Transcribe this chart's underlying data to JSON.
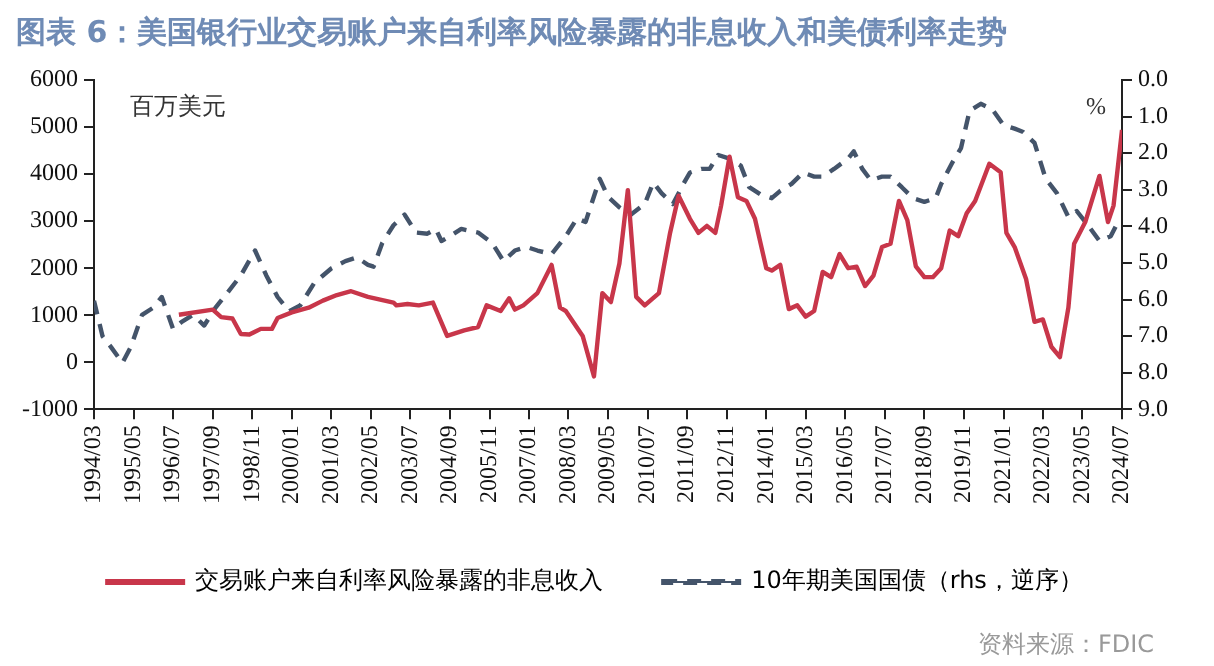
{
  "chart_data": {
    "type": "line",
    "title": "图表 6：美国银行业交易账户来自利率风险暴露的非息收入和美债利率走势",
    "ylabel": "百万美元",
    "y2label": "%",
    "annotations": [
      "资料来源：FDIC"
    ],
    "xlim": [
      "1994-03",
      "2024-07"
    ],
    "xticks": [
      {
        "value": "1994-03",
        "label": "1994/03"
      },
      {
        "value": "1995-05",
        "label": "1995/05"
      },
      {
        "value": "1996-07",
        "label": "1996/07"
      },
      {
        "value": "1997-09",
        "label": "1997/09"
      },
      {
        "value": "1998-11",
        "label": "1998/11"
      },
      {
        "value": "2000-01",
        "label": "2000/01"
      },
      {
        "value": "2001-03",
        "label": "2001/03"
      },
      {
        "value": "2002-05",
        "label": "2002/05"
      },
      {
        "value": "2003-07",
        "label": "2003/07"
      },
      {
        "value": "2004-09",
        "label": "2004/09"
      },
      {
        "value": "2005-11",
        "label": "2005/11"
      },
      {
        "value": "2007-01",
        "label": "2007/01"
      },
      {
        "value": "2008-03",
        "label": "2008/03"
      },
      {
        "value": "2009-05",
        "label": "2009/05"
      },
      {
        "value": "2010-07",
        "label": "2010/07"
      },
      {
        "value": "2011-09",
        "label": "2011/09"
      },
      {
        "value": "2012-11",
        "label": "2012/11"
      },
      {
        "value": "2014-01",
        "label": "2014/01"
      },
      {
        "value": "2015-03",
        "label": "2015/03"
      },
      {
        "value": "2016-05",
        "label": "2016/05"
      },
      {
        "value": "2017-07",
        "label": "2017/07"
      },
      {
        "value": "2018-09",
        "label": "2018/09"
      },
      {
        "value": "2019-11",
        "label": "2019/11"
      },
      {
        "value": "2021-01",
        "label": "2021/01"
      },
      {
        "value": "2022-03",
        "label": "2022/03"
      },
      {
        "value": "2023-05",
        "label": "2023/05"
      },
      {
        "value": "2024-07",
        "label": "2024/07"
      }
    ],
    "ylim": [
      -1000,
      6000
    ],
    "yticks": [
      -1000,
      0,
      1000,
      2000,
      3000,
      4000,
      5000,
      6000
    ],
    "y2lim": [
      9,
      0
    ],
    "y2ticks": [
      {
        "value": 0,
        "label": "0.0"
      },
      {
        "value": 1,
        "label": "1.0"
      },
      {
        "value": 2,
        "label": "2.0"
      },
      {
        "value": 3,
        "label": "3.0"
      },
      {
        "value": 4,
        "label": "4.0"
      },
      {
        "value": 5,
        "label": "5.0"
      },
      {
        "value": 6,
        "label": "6.0"
      },
      {
        "value": 7,
        "label": "7.0"
      },
      {
        "value": 8,
        "label": "8.0"
      },
      {
        "value": 9,
        "label": "9.0"
      }
    ],
    "grid": false,
    "legend": "bottom",
    "marker": "none",
    "series": [
      {
        "name": "交易账户来自利率风险暴露的非息收入",
        "color": "#c8364a",
        "line_style": "solid",
        "x": [
          "1996-09",
          "1997-09",
          "1997-12",
          "1998-04",
          "1998-07",
          "1998-10",
          "1999-02",
          "1999-06",
          "1999-08",
          "2000-01",
          "2000-07",
          "2000-12",
          "2001-05",
          "2001-10",
          "2002-04",
          "2003-01",
          "2003-02",
          "2003-06",
          "2003-10",
          "2004-03",
          "2004-08",
          "2005-02",
          "2005-07",
          "2005-10",
          "2006-03",
          "2006-06",
          "2006-08",
          "2006-11",
          "2007-04",
          "2007-09",
          "2007-12",
          "2008-02",
          "2008-08",
          "2008-12",
          "2009-03",
          "2009-06",
          "2009-09",
          "2009-12",
          "2010-03",
          "2010-06",
          "2010-11",
          "2011-03",
          "2011-06",
          "2011-10",
          "2012-01",
          "2012-04",
          "2012-07",
          "2012-09",
          "2012-12",
          "2013-03",
          "2013-06",
          "2013-09",
          "2014-01",
          "2014-03",
          "2014-06",
          "2014-09",
          "2014-12",
          "2015-03",
          "2015-06",
          "2015-09",
          "2015-12",
          "2016-03",
          "2016-06",
          "2016-09",
          "2016-12",
          "2017-03",
          "2017-06",
          "2017-09",
          "2017-12",
          "2018-03",
          "2018-06",
          "2018-09",
          "2018-12",
          "2019-03",
          "2019-06",
          "2019-09",
          "2019-12",
          "2020-03",
          "2020-08",
          "2020-12",
          "2021-02",
          "2021-05",
          "2021-09",
          "2021-12",
          "2022-03",
          "2022-06",
          "2022-09",
          "2022-12",
          "2023-02",
          "2023-06",
          "2023-11",
          "2024-02",
          "2024-04",
          "2024-07"
        ],
        "values": [
          1010,
          1120,
          960,
          930,
          600,
          590,
          710,
          710,
          940,
          1060,
          1160,
          1310,
          1430,
          1510,
          1390,
          1270,
          1210,
          1240,
          1210,
          1270,
          560,
          680,
          750,
          1210,
          1090,
          1360,
          1120,
          1210,
          1470,
          2070,
          1160,
          1090,
          560,
          -300,
          1470,
          1280,
          2100,
          3660,
          1390,
          1210,
          1470,
          2750,
          3540,
          3050,
          2750,
          2900,
          2750,
          3330,
          4370,
          3510,
          3430,
          3050,
          2000,
          1950,
          2070,
          1130,
          1210,
          970,
          1090,
          1920,
          1810,
          2300,
          2000,
          2030,
          1620,
          1840,
          2450,
          2520,
          3430,
          3020,
          2040,
          1810,
          1810,
          2000,
          2800,
          2680,
          3170,
          3430,
          4220,
          4040,
          2750,
          2450,
          1770,
          860,
          910,
          330,
          110,
          1160,
          2520,
          2980,
          3960,
          2980,
          3330,
          4940
        ]
      },
      {
        "name": "10年期美国国债（rhs，逆序）",
        "color": "#44546a",
        "line_style": "dashed",
        "axis": "y2",
        "x": [
          "1994-03",
          "1994-06",
          "1994-09",
          "1995-01",
          "1995-04",
          "1995-08",
          "1995-12",
          "1996-03",
          "1996-07",
          "1996-10",
          "1997-02",
          "1997-06",
          "1997-10",
          "1998-02",
          "1998-07",
          "1998-12",
          "1999-04",
          "1999-08",
          "1999-12",
          "2000-04",
          "2000-09",
          "2001-03",
          "2001-08",
          "2001-12",
          "2002-04",
          "2002-06",
          "2002-09",
          "2003-01",
          "2003-05",
          "2003-09",
          "2004-01",
          "2004-04",
          "2004-06",
          "2004-09",
          "2005-01",
          "2005-07",
          "2005-12",
          "2006-04",
          "2006-08",
          "2006-12",
          "2007-04",
          "2007-09",
          "2008-02",
          "2008-06",
          "2008-09",
          "2009-02",
          "2009-05",
          "2009-09",
          "2010-01",
          "2010-06",
          "2010-09",
          "2010-12",
          "2011-04",
          "2011-08",
          "2011-10",
          "2012-02",
          "2012-05",
          "2012-08",
          "2012-12",
          "2013-04",
          "2013-07",
          "2013-11",
          "2014-03",
          "2014-06",
          "2014-10",
          "2015-02",
          "2015-06",
          "2015-09",
          "2016-01",
          "2016-06",
          "2016-08",
          "2016-11",
          "2017-02",
          "2017-06",
          "2017-09",
          "2018-01",
          "2018-05",
          "2018-09",
          "2019-01",
          "2019-03",
          "2019-07",
          "2019-10",
          "2020-01",
          "2020-05",
          "2020-09",
          "2021-01",
          "2021-05",
          "2021-08",
          "2021-12",
          "2022-04",
          "2022-08",
          "2022-12",
          "2023-03",
          "2023-07",
          "2023-11",
          "2024-03",
          "2024-05",
          "2024-07"
        ],
        "values": [
          6.03,
          7.0,
          7.3,
          7.73,
          7.3,
          6.42,
          6.22,
          5.93,
          6.81,
          6.61,
          6.42,
          6.71,
          6.22,
          5.83,
          5.34,
          4.66,
          5.34,
          5.93,
          6.32,
          6.16,
          5.54,
          5.15,
          4.95,
          4.85,
          5.05,
          5.1,
          4.46,
          3.97,
          3.68,
          4.17,
          4.2,
          4.07,
          4.4,
          4.27,
          4.07,
          4.17,
          4.46,
          4.95,
          4.66,
          4.56,
          4.66,
          4.76,
          4.27,
          3.78,
          3.88,
          2.7,
          3.19,
          3.48,
          3.68,
          3.39,
          2.8,
          3.1,
          3.39,
          2.8,
          2.53,
          2.43,
          2.43,
          2.05,
          2.15,
          2.34,
          2.93,
          3.13,
          3.23,
          3.03,
          2.84,
          2.53,
          2.64,
          2.64,
          2.43,
          2.15,
          1.95,
          2.43,
          2.74,
          2.64,
          2.64,
          2.93,
          3.23,
          3.33,
          3.23,
          2.84,
          2.25,
          1.86,
          0.84,
          0.65,
          0.8,
          1.23,
          1.33,
          1.42,
          1.72,
          2.7,
          3.1,
          3.74,
          3.58,
          3.97,
          4.4,
          4.27,
          3.97,
          4.07
        ]
      }
    ]
  }
}
